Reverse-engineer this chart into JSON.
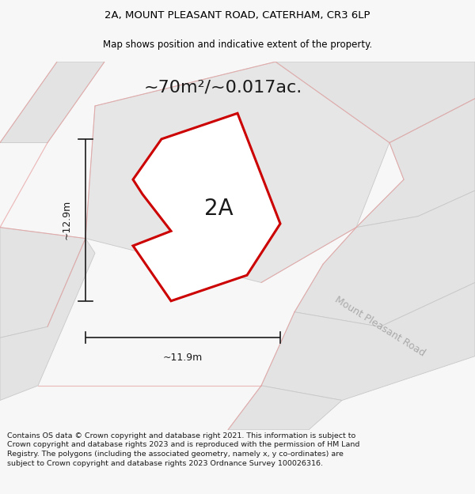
{
  "title_line1": "2A, MOUNT PLEASANT ROAD, CATERHAM, CR3 6LP",
  "title_line2": "Map shows position and indicative extent of the property.",
  "area_text": "~70m²/~0.017ac.",
  "label_2A": "2A",
  "dim_height": "~12.9m",
  "dim_width": "~11.9m",
  "road_label": "Mount Pleasant Road",
  "footer_text": "Contains OS data © Crown copyright and database right 2021. This information is subject to Crown copyright and database rights 2023 and is reproduced with the permission of HM Land Registry. The polygons (including the associated geometry, namely x, y co-ordinates) are subject to Crown copyright and database rights 2023 Ordnance Survey 100026316.",
  "bg_color": "#f7f7f7",
  "map_bg": "#efefef",
  "plot_fill": "#e8e8e8",
  "plot_outline": "#cc0000",
  "neighbor_fill": "#e0e0e0",
  "neighbor_outline": "#cccccc",
  "dim_line_color": "#1a1a1a",
  "pink_line_color": "#e8a0a0",
  "road_text_color": "#aaaaaa",
  "title_fontsize": 9.5,
  "subtitle_fontsize": 8.5,
  "area_fontsize": 16,
  "label_fontsize": 20,
  "dim_fontsize": 9,
  "road_fontsize": 9,
  "footer_fontsize": 6.8
}
